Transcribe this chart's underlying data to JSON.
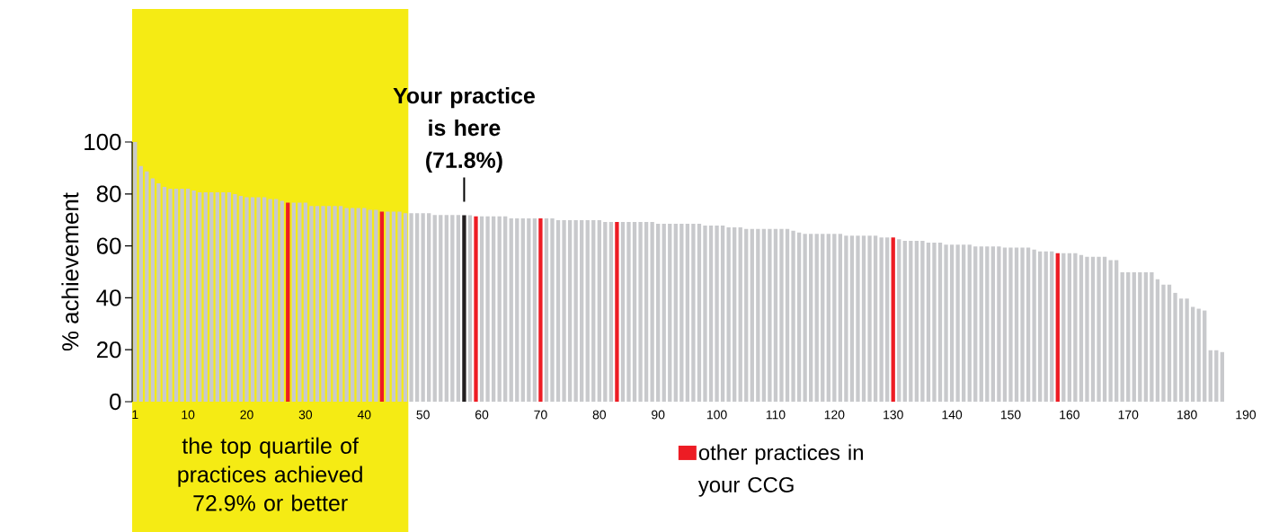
{
  "chart_data": {
    "type": "bar",
    "ylabel": "% achievement",
    "x": [
      1,
      2,
      3,
      4,
      5,
      6,
      7,
      8,
      9,
      10,
      11,
      12,
      13,
      14,
      15,
      16,
      17,
      18,
      19,
      20,
      21,
      22,
      23,
      24,
      25,
      26,
      27,
      28,
      29,
      30,
      31,
      32,
      33,
      34,
      35,
      36,
      37,
      38,
      39,
      40,
      41,
      42,
      43,
      44,
      45,
      46,
      47,
      48,
      49,
      50,
      51,
      52,
      53,
      54,
      55,
      56,
      57,
      58,
      59,
      60,
      61,
      62,
      63,
      64,
      65,
      66,
      67,
      68,
      69,
      70,
      71,
      72,
      73,
      74,
      75,
      76,
      77,
      78,
      79,
      80,
      81,
      82,
      83,
      84,
      85,
      86,
      87,
      88,
      89,
      90,
      91,
      92,
      93,
      94,
      95,
      96,
      97,
      98,
      99,
      100,
      101,
      102,
      103,
      104,
      105,
      106,
      107,
      108,
      109,
      110,
      111,
      112,
      113,
      114,
      115,
      116,
      117,
      118,
      119,
      120,
      121,
      122,
      123,
      124,
      125,
      126,
      127,
      128,
      129,
      130,
      131,
      132,
      133,
      134,
      135,
      136,
      137,
      138,
      139,
      140,
      141,
      142,
      143,
      144,
      145,
      146,
      147,
      148,
      149,
      150,
      151,
      152,
      153,
      154,
      155,
      156,
      157,
      158,
      159,
      160,
      161,
      162,
      163,
      164,
      165,
      166,
      167,
      168,
      169,
      170,
      171,
      172,
      173,
      174,
      175,
      176,
      177,
      178,
      179,
      180,
      181,
      182,
      183,
      184,
      185,
      186
    ],
    "series": [
      {
        "color": "#c8c9cc",
        "values": [
          100,
          90.7,
          88.7,
          86.0,
          84.1,
          82.7,
          82.0,
          82.0,
          82.0,
          82.0,
          81.3,
          80.6,
          80.6,
          80.6,
          80.6,
          80.6,
          80.6,
          79.9,
          79.2,
          78.7,
          78.7,
          78.7,
          78.7,
          78.0,
          78.0,
          77.3,
          null,
          76.6,
          76.6,
          76.6,
          75.3,
          75.3,
          75.3,
          75.3,
          75.3,
          75.3,
          74.6,
          74.6,
          74.6,
          74.6,
          73.9,
          73.9,
          null,
          73.2,
          73.2,
          73.2,
          72.6,
          72.6,
          72.6,
          72.6,
          72.6,
          71.9,
          71.9,
          71.9,
          71.9,
          71.9,
          null,
          71.8,
          null,
          71.4,
          71.4,
          71.4,
          71.4,
          71.4,
          70.6,
          70.6,
          70.6,
          70.6,
          70.6,
          null,
          70.6,
          70.6,
          69.9,
          69.9,
          69.9,
          69.9,
          69.9,
          69.9,
          69.9,
          69.9,
          69.2,
          69.2,
          null,
          69.2,
          69.2,
          69.2,
          69.2,
          69.2,
          69.2,
          68.5,
          68.5,
          68.5,
          68.5,
          68.5,
          68.5,
          68.5,
          68.5,
          67.8,
          67.8,
          67.8,
          67.8,
          67.1,
          67.1,
          67.1,
          66.5,
          66.5,
          66.5,
          66.5,
          66.5,
          66.5,
          66.5,
          66.5,
          65.8,
          65.1,
          64.6,
          64.6,
          64.6,
          64.6,
          64.6,
          64.6,
          64.6,
          63.9,
          63.9,
          63.9,
          63.9,
          63.9,
          63.9,
          63.2,
          63.2,
          null,
          62.5,
          61.9,
          61.9,
          61.9,
          61.9,
          61.2,
          61.2,
          61.2,
          60.5,
          60.5,
          60.5,
          60.5,
          60.5,
          59.8,
          59.8,
          59.8,
          59.8,
          59.8,
          59.3,
          59.3,
          59.3,
          59.3,
          59.3,
          58.6,
          57.9,
          57.9,
          57.9,
          null,
          57.2,
          57.2,
          57.2,
          56.5,
          55.8,
          55.8,
          55.8,
          55.8,
          54.5,
          54.5,
          49.8,
          49.8,
          49.8,
          49.8,
          49.8,
          49.8,
          47.1,
          45.1,
          45.1,
          41.9,
          39.7,
          39.7,
          36.5,
          35.8,
          35.1,
          19.8,
          19.8,
          19.1
        ]
      },
      {
        "name": "other practices in your CCG",
        "color": "#ed1c24",
        "values": [
          null,
          null,
          null,
          null,
          null,
          null,
          null,
          null,
          null,
          null,
          null,
          null,
          null,
          null,
          null,
          null,
          null,
          null,
          null,
          null,
          null,
          null,
          null,
          null,
          null,
          null,
          76.6,
          null,
          null,
          null,
          null,
          null,
          null,
          null,
          null,
          null,
          null,
          null,
          null,
          null,
          null,
          null,
          73.2,
          null,
          null,
          null,
          null,
          null,
          null,
          null,
          null,
          null,
          null,
          null,
          null,
          null,
          null,
          null,
          71.4,
          null,
          null,
          null,
          null,
          null,
          null,
          null,
          null,
          null,
          null,
          70.6,
          null,
          null,
          null,
          null,
          null,
          null,
          null,
          null,
          null,
          null,
          null,
          null,
          69.2,
          null,
          null,
          null,
          null,
          null,
          null,
          null,
          null,
          null,
          null,
          null,
          null,
          null,
          null,
          null,
          null,
          null,
          null,
          null,
          null,
          null,
          null,
          null,
          null,
          null,
          null,
          null,
          null,
          null,
          null,
          null,
          null,
          null,
          null,
          null,
          null,
          null,
          null,
          null,
          null,
          null,
          null,
          null,
          null,
          null,
          null,
          63.2,
          null,
          null,
          null,
          null,
          null,
          null,
          null,
          null,
          null,
          null,
          null,
          null,
          null,
          null,
          null,
          null,
          null,
          null,
          null,
          null,
          null,
          null,
          null,
          null,
          null,
          null,
          null,
          57.2,
          null,
          null,
          null,
          null,
          null,
          null,
          null,
          null,
          null,
          null,
          null,
          null,
          null,
          null,
          null,
          null,
          null,
          null,
          null,
          null,
          null,
          null,
          null,
          null,
          null,
          null,
          null,
          null
        ]
      },
      {
        "color": "#231f20",
        "values": [
          null,
          null,
          null,
          null,
          null,
          null,
          null,
          null,
          null,
          null,
          null,
          null,
          null,
          null,
          null,
          null,
          null,
          null,
          null,
          null,
          null,
          null,
          null,
          null,
          null,
          null,
          null,
          null,
          null,
          null,
          null,
          null,
          null,
          null,
          null,
          null,
          null,
          null,
          null,
          null,
          null,
          null,
          null,
          null,
          null,
          null,
          null,
          null,
          null,
          null,
          null,
          null,
          null,
          null,
          null,
          null,
          71.8,
          null,
          null,
          null,
          null,
          null,
          null,
          null,
          null,
          null,
          null,
          null,
          null,
          null,
          null,
          null,
          null,
          null,
          null,
          null,
          null,
          null,
          null,
          null,
          null,
          null,
          null,
          null,
          null,
          null,
          null,
          null,
          null,
          null,
          null,
          null,
          null,
          null,
          null,
          null,
          null,
          null,
          null,
          null,
          null,
          null,
          null,
          null,
          null,
          null,
          null,
          null,
          null,
          null,
          null,
          null,
          null,
          null,
          null,
          null,
          null,
          null,
          null,
          null,
          null,
          null,
          null,
          null,
          null,
          null,
          null,
          null,
          null,
          null,
          null,
          null,
          null,
          null,
          null,
          null,
          null,
          null,
          null,
          null,
          null,
          null,
          null,
          null,
          null,
          null,
          null,
          null,
          null,
          null,
          null,
          null,
          null,
          null,
          null,
          null,
          null,
          null,
          null,
          null,
          null,
          null,
          null,
          null,
          null,
          null,
          null,
          null,
          null,
          null,
          null,
          null,
          null,
          null,
          null,
          null,
          null,
          null,
          null,
          null,
          null,
          null,
          null,
          null,
          null,
          null
        ]
      }
    ],
    "xlim": [
      0.5,
      190
    ],
    "xticks": [
      1,
      10,
      20,
      30,
      40,
      50,
      60,
      70,
      80,
      90,
      100,
      110,
      120,
      130,
      140,
      150,
      160,
      170,
      180,
      190
    ],
    "ylim": [
      0,
      100
    ],
    "yticks": [
      0,
      20,
      40,
      60,
      80,
      100
    ],
    "bands": [
      {
        "axis": "x",
        "from": 0.5,
        "to": 47.5,
        "color": "#f5eb14",
        "label": "the top quartile of practices achieved 72.9% or better"
      }
    ],
    "annotations": [
      {
        "text": "Your practice is here (71.8%)",
        "x": 57,
        "y": 71.8
      }
    ],
    "legend": "bottom"
  }
}
